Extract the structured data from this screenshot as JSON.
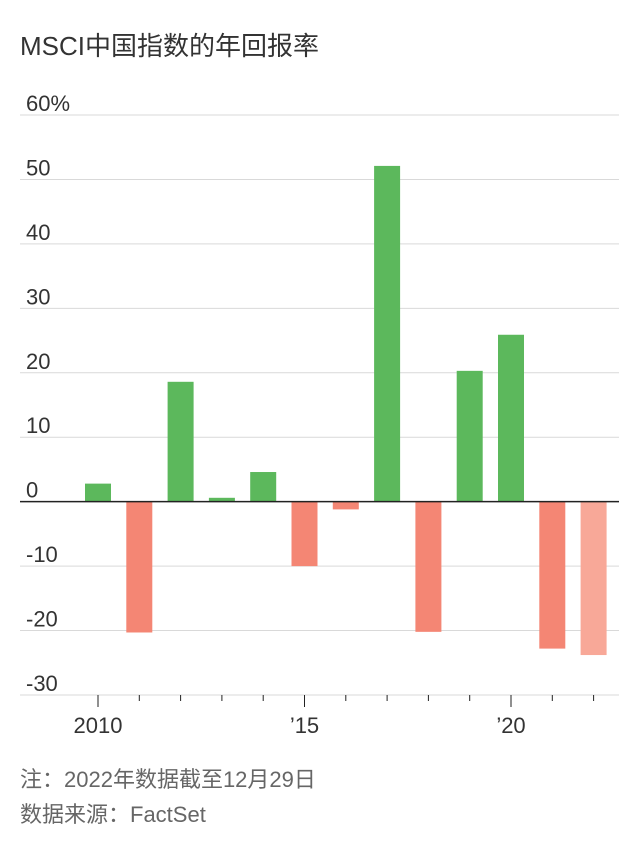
{
  "title": "MSCI中国指数的年回报率",
  "note": "注：2022年数据截至12月29日",
  "source": "数据来源：FactSet",
  "chart_data": {
    "type": "bar",
    "x": [
      2010,
      2011,
      2012,
      2013,
      2014,
      2015,
      2016,
      2017,
      2018,
      2019,
      2020,
      2021,
      2022
    ],
    "values": [
      2.8,
      -20.3,
      18.6,
      0.6,
      4.6,
      -10.0,
      -1.2,
      52.1,
      -20.2,
      20.3,
      25.9,
      -22.8,
      -23.8
    ],
    "ylim": [
      -30,
      60
    ],
    "yticks": [
      60,
      50,
      40,
      30,
      20,
      10,
      0,
      -10,
      -20,
      -30
    ],
    "ytick_labels": [
      "60%",
      "50",
      "40",
      "30",
      "20",
      "10",
      "0",
      "-10",
      "-20",
      "-30"
    ],
    "xticks": [
      2010,
      2015,
      2020
    ],
    "xtick_labels": [
      "2010",
      "’15",
      "’20"
    ],
    "colors": {
      "positive": "#5cb85c",
      "negative": "#f48674",
      "partial_year": "#f8a898",
      "grid": "#d9d9d9",
      "axis": "#222222"
    },
    "partial_year": 2022,
    "grid": true,
    "legend": "none"
  }
}
